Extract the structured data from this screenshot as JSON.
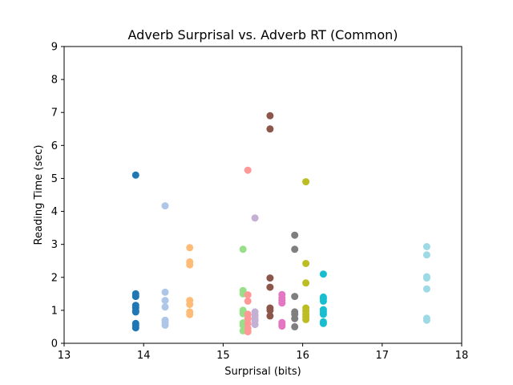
{
  "chart_data": {
    "type": "scatter",
    "title": "Adverb Surprisal vs. Adverb RT (Common)",
    "xlabel": "Surprisal (bits)",
    "ylabel": "Reading Time (sec)",
    "xlim": [
      13,
      18
    ],
    "ylim": [
      0,
      9
    ],
    "xticks": [
      13,
      14,
      15,
      16,
      17,
      18
    ],
    "yticks": [
      0,
      1,
      2,
      3,
      4,
      5,
      6,
      7,
      8,
      9
    ],
    "grid": false,
    "legend": "none",
    "groups": [
      {
        "color": "#1f77b4",
        "points": [
          [
            13.9,
            5.1
          ],
          [
            13.9,
            1.5
          ],
          [
            13.9,
            1.42
          ],
          [
            13.9,
            1.15
          ],
          [
            13.9,
            1.08
          ],
          [
            13.9,
            0.98
          ],
          [
            13.9,
            0.95
          ],
          [
            13.9,
            0.6
          ],
          [
            13.9,
            0.55
          ],
          [
            13.9,
            0.47
          ]
        ]
      },
      {
        "color": "#aec7e8",
        "points": [
          [
            14.27,
            4.17
          ],
          [
            14.27,
            1.55
          ],
          [
            14.27,
            1.3
          ],
          [
            14.27,
            1.1
          ],
          [
            14.27,
            0.7
          ],
          [
            14.27,
            0.62
          ],
          [
            14.27,
            0.55
          ]
        ]
      },
      {
        "color": "#ffbb78",
        "points": [
          [
            14.58,
            2.9
          ],
          [
            14.58,
            2.47
          ],
          [
            14.58,
            2.38
          ],
          [
            14.58,
            1.3
          ],
          [
            14.58,
            1.18
          ],
          [
            14.58,
            0.95
          ],
          [
            14.58,
            0.87
          ]
        ]
      },
      {
        "color": "#98df8a",
        "points": [
          [
            15.25,
            2.85
          ],
          [
            15.25,
            1.6
          ],
          [
            15.25,
            1.5
          ],
          [
            15.25,
            1.0
          ],
          [
            15.25,
            0.95
          ],
          [
            15.25,
            0.9
          ],
          [
            15.25,
            0.62
          ],
          [
            15.25,
            0.55
          ],
          [
            15.25,
            0.38
          ]
        ]
      },
      {
        "color": "#ff9896",
        "points": [
          [
            15.31,
            5.25
          ],
          [
            15.31,
            1.47
          ],
          [
            15.31,
            1.28
          ],
          [
            15.31,
            0.88
          ],
          [
            15.31,
            0.75
          ],
          [
            15.31,
            0.6
          ],
          [
            15.31,
            0.45
          ],
          [
            15.31,
            0.35
          ]
        ]
      },
      {
        "color": "#c5b0d5",
        "points": [
          [
            15.4,
            3.8
          ],
          [
            15.4,
            0.95
          ],
          [
            15.4,
            0.85
          ],
          [
            15.4,
            0.75
          ],
          [
            15.4,
            0.68
          ],
          [
            15.4,
            0.57
          ]
        ]
      },
      {
        "color": "#8c564b",
        "points": [
          [
            15.59,
            6.9
          ],
          [
            15.59,
            6.5
          ],
          [
            15.59,
            1.98
          ],
          [
            15.59,
            1.7
          ],
          [
            15.59,
            1.07
          ],
          [
            15.59,
            1.0
          ],
          [
            15.59,
            0.83
          ]
        ]
      },
      {
        "color": "#e377c2",
        "points": [
          [
            15.74,
            1.48
          ],
          [
            15.74,
            1.38
          ],
          [
            15.74,
            1.3
          ],
          [
            15.74,
            1.22
          ],
          [
            15.74,
            0.63
          ],
          [
            15.74,
            0.57
          ],
          [
            15.74,
            0.52
          ]
        ]
      },
      {
        "color": "#7f7f7f",
        "points": [
          [
            15.9,
            3.28
          ],
          [
            15.9,
            2.85
          ],
          [
            15.9,
            1.42
          ],
          [
            15.9,
            0.95
          ],
          [
            15.9,
            0.88
          ],
          [
            15.9,
            0.75
          ],
          [
            15.9,
            0.5
          ]
        ]
      },
      {
        "color": "#bcbd22",
        "points": [
          [
            16.04,
            4.9
          ],
          [
            16.04,
            2.42
          ],
          [
            16.04,
            1.83
          ],
          [
            16.04,
            1.07
          ],
          [
            16.04,
            0.98
          ],
          [
            16.04,
            0.88
          ],
          [
            16.04,
            0.8
          ],
          [
            16.04,
            0.72
          ]
        ]
      },
      {
        "color": "#17becf",
        "points": [
          [
            16.26,
            2.1
          ],
          [
            16.26,
            1.4
          ],
          [
            16.26,
            1.35
          ],
          [
            16.26,
            1.28
          ],
          [
            16.26,
            1.02
          ],
          [
            16.26,
            0.95
          ],
          [
            16.26,
            0.88
          ],
          [
            16.26,
            0.65
          ],
          [
            16.26,
            0.6
          ]
        ]
      },
      {
        "color": "#9edae5",
        "points": [
          [
            17.56,
            2.93
          ],
          [
            17.56,
            2.68
          ],
          [
            17.56,
            2.02
          ],
          [
            17.56,
            1.98
          ],
          [
            17.56,
            1.65
          ],
          [
            17.56,
            0.76
          ],
          [
            17.56,
            0.7
          ]
        ]
      }
    ]
  }
}
